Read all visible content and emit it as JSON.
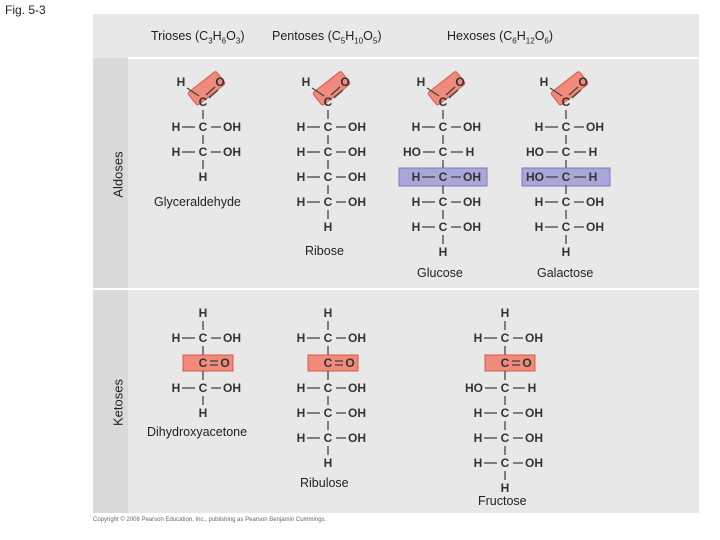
{
  "figure_label": "Fig. 5-3",
  "columns": [
    {
      "key": "trioses",
      "label": "Trioses (C",
      "formula_parts": [
        "3",
        "H",
        "6",
        "O",
        "3",
        ")"
      ]
    },
    {
      "key": "pentoses",
      "label": "Pentoses (C",
      "formula_parts": [
        "5",
        "H",
        "10",
        "O",
        "5",
        ")"
      ]
    },
    {
      "key": "hexoses",
      "label": "Hexoses (C",
      "formula_parts": [
        "6",
        "H",
        "12",
        "O",
        "6",
        ")"
      ]
    }
  ],
  "rows": {
    "aldoses": "Aldoses",
    "ketoses": "Ketoses"
  },
  "names": {
    "glyceraldehyde": "Glyceraldehyde",
    "ribose": "Ribose",
    "glucose": "Glucose",
    "galactose": "Galactose",
    "dihydroxyacetone": "Dihydroxyacetone",
    "ribulose": "Ribulose",
    "fructose": "Fructose"
  },
  "colors": {
    "carbonyl_highlight": "#f08a7a",
    "carbonyl_border": "#d85a4a",
    "isomer_highlight": "#a9a7d8",
    "isomer_border": "#7c79bb",
    "panel": "#e8e8e8",
    "sidebar": "#dadada"
  },
  "copyright": "Copyright © 2008 Pearson Education, Inc., publishing as Pearson Benjamin Cummings."
}
